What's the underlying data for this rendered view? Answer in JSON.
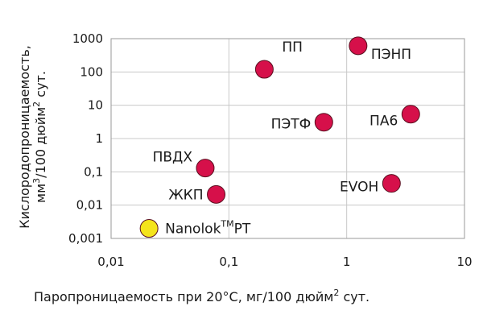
{
  "chart_data": {
    "type": "scatter",
    "log_x": true,
    "log_y": true,
    "grid": true,
    "xlim": [
      0.01,
      10
    ],
    "xticks": [
      {
        "value": 0.01,
        "label": "0,01"
      },
      {
        "value": 0.1,
        "label": "0,1"
      },
      {
        "value": 1,
        "label": "1"
      },
      {
        "value": 10,
        "label": "10"
      }
    ],
    "ylim": [
      0.001,
      1000
    ],
    "yticks": [
      {
        "value": 0.001,
        "label": "0,001"
      },
      {
        "value": 0.01,
        "label": "0,01"
      },
      {
        "value": 0.1,
        "label": "0,1"
      },
      1,
      10,
      100,
      1000
    ],
    "x_label": {
      "text": "Паропроницаемость при 20°C, мг/100 дюйм",
      "sup": "2",
      "tail": "  сут."
    },
    "y_label": {
      "line1": "Кислородопроницаемость,",
      "pre": "мм",
      "sup1": "3",
      "mid": "/100 дюйм",
      "sup2": "2",
      "tail": " сут."
    },
    "points": [
      {
        "name": "ПП",
        "x": 0.2,
        "y": 120,
        "color": "#d6104a"
      },
      {
        "name": "ПЭНП",
        "x": 1.25,
        "y": 610,
        "color": "#d6104a"
      },
      {
        "name": "ПЭТФ",
        "x": 0.64,
        "y": 3.1,
        "color": "#d6104a"
      },
      {
        "name": "ПА6",
        "x": 3.5,
        "y": 5.4,
        "color": "#d6104a"
      },
      {
        "name": "ПВДХ",
        "x": 0.063,
        "y": 0.13,
        "color": "#d6104a"
      },
      {
        "name": "ЖКП",
        "x": 0.078,
        "y": 0.021,
        "color": "#d6104a"
      },
      {
        "name": "EVOH",
        "x": 2.4,
        "y": 0.045,
        "color": "#d6104a"
      },
      {
        "name": "Nanolok",
        "name_sup": "TM",
        "name_suffix": "PT",
        "x": 0.021,
        "y": 0.002,
        "color": "#f4e41c"
      }
    ]
  }
}
